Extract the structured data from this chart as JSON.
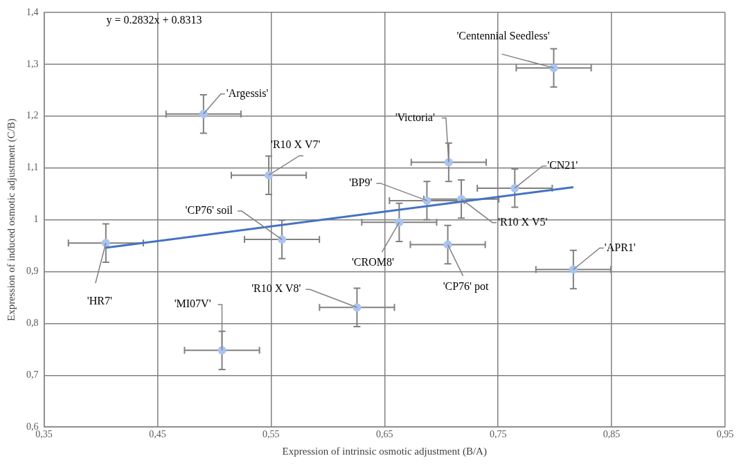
{
  "chart_data": {
    "type": "scatter",
    "xlabel": "Expression of intrinsic osmotic adjustment (B/A)",
    "ylabel": "Expression of induced osmotic adjustment (C/B)",
    "xlim": [
      0.35,
      0.95
    ],
    "xticks": [
      {
        "value": 0.35,
        "label": "0,35"
      },
      {
        "value": 0.45,
        "label": "0,45"
      },
      {
        "value": 0.55,
        "label": "0,55"
      },
      {
        "value": 0.65,
        "label": "0,65"
      },
      {
        "value": 0.75,
        "label": "0,75"
      },
      {
        "value": 0.85,
        "label": "0,85"
      },
      {
        "value": 0.95,
        "label": "0,95"
      }
    ],
    "ylim": [
      0.6,
      1.4
    ],
    "yticks": [
      {
        "value": 0.6,
        "label": "0,6"
      },
      {
        "value": 0.7,
        "label": "0,7"
      },
      {
        "value": 0.8,
        "label": "0,8"
      },
      {
        "value": 0.9,
        "label": "0,9"
      },
      {
        "value": 1,
        "label": "1"
      },
      {
        "value": 1.1,
        "label": "1,1"
      },
      {
        "value": 1.2,
        "label": "1,2"
      },
      {
        "value": 1.3,
        "label": "1,3"
      },
      {
        "value": 1.4,
        "label": "1,4"
      }
    ],
    "grid": true,
    "marker": "circle",
    "series": [
      {
        "type": "scatter",
        "color": "#a9c4f0",
        "x": [
          0.799,
          0.4905,
          0.548,
          0.5596,
          0.4045,
          0.5068,
          0.6257,
          0.7065,
          0.7647,
          0.6873,
          0.7176,
          0.6629,
          0.7057,
          0.8163
        ],
        "values": [
          1.293,
          1.204,
          1.086,
          0.962,
          0.955,
          0.748,
          0.831,
          1.111,
          1.061,
          1.037,
          1.04,
          0.995,
          0.952,
          0.904
        ],
        "errors": [
          0.037,
          0.037,
          0.037,
          0.037,
          0.037,
          0.037,
          0.037,
          0.037,
          0.037,
          0.037,
          0.037,
          0.037,
          0.037,
          0.037
        ],
        "xerrors": [
          0.033,
          0.033,
          0.033,
          0.033,
          0.033,
          0.033,
          0.033,
          0.033,
          0.033,
          0.033,
          0.033,
          0.033,
          0.033,
          0.033
        ]
      },
      {
        "type": "line",
        "color": "#4472c4",
        "x": [
          0.4045,
          0.8163
        ],
        "values": [
          0.946,
          1.063
        ],
        "marker": "none",
        "line_style": "solid"
      }
    ],
    "annotations": [
      "y = 0.2832x + 0.8313",
      {
        "text": "'Centennial Seedless'",
        "x": 0.799,
        "y": 1.293
      },
      {
        "text": "'Argessis'",
        "x": 0.4905,
        "y": 1.204
      },
      {
        "text": "'R10 X V7'",
        "x": 0.548,
        "y": 1.086
      },
      {
        "text": "'CP76' soil",
        "x": 0.5596,
        "y": 0.962
      },
      {
        "text": "'HR7'",
        "x": 0.4045,
        "y": 0.955
      },
      {
        "text": "'MI07V'",
        "x": 0.5068,
        "y": 0.748
      },
      {
        "text": "'R10 X V8'",
        "x": 0.6257,
        "y": 0.831
      },
      {
        "text": "'Victoria'",
        "x": 0.7065,
        "y": 1.111
      },
      {
        "text": "'CN21'",
        "x": 0.7647,
        "y": 1.061
      },
      {
        "text": "'BP9'",
        "x": 0.6873,
        "y": 1.037
      },
      {
        "text": "'R10 X V5'",
        "x": 0.7176,
        "y": 1.04
      },
      {
        "text": "'CROM8'",
        "x": 0.6629,
        "y": 0.995
      },
      {
        "text": "'CP76' pot",
        "x": 0.7057,
        "y": 0.952
      },
      {
        "text": "'APR1'",
        "x": 0.8163,
        "y": 0.904
      }
    ]
  }
}
